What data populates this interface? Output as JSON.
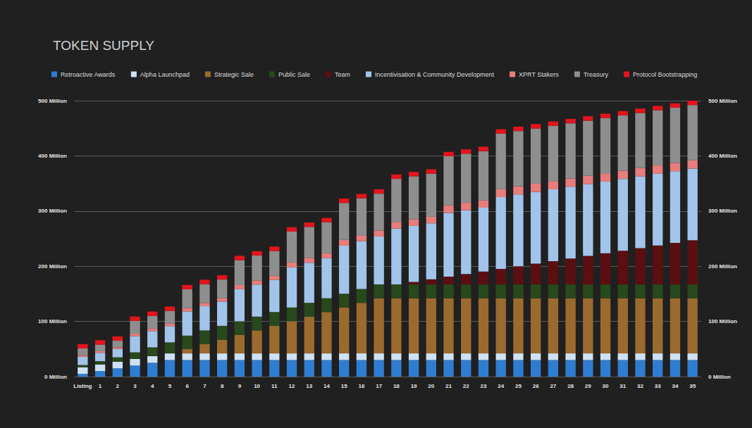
{
  "chart_data": {
    "type": "bar",
    "title": "TOKEN SUPPLY",
    "stacked": true,
    "grid": true,
    "legend": "top-left",
    "categories": [
      "Listing",
      "1",
      "2",
      "3",
      "4",
      "5",
      "6",
      "7",
      "8",
      "9",
      "10",
      "11",
      "12",
      "13",
      "14",
      "15",
      "16",
      "17",
      "18",
      "19",
      "20",
      "21",
      "22",
      "23",
      "24",
      "25",
      "26",
      "27",
      "28",
      "29",
      "30",
      "31",
      "32",
      "33",
      "34",
      "35"
    ],
    "ylim": [
      0,
      500
    ],
    "yticks": [
      {
        "value": 0,
        "label": "0 Million"
      },
      {
        "value": 100,
        "label": "100 Million"
      },
      {
        "value": 200,
        "label": "200 Million"
      },
      {
        "value": 300,
        "label": "300 Million"
      },
      {
        "value": 400,
        "label": "400 Million"
      },
      {
        "value": 500,
        "label": "500 Million"
      }
    ],
    "y2lim": [
      0,
      500
    ],
    "y2ticks": [
      {
        "value": 0,
        "label": "0 Million"
      },
      {
        "value": 100,
        "label": "100 Million"
      },
      {
        "value": 200,
        "label": "200 Million"
      },
      {
        "value": 300,
        "label": "300 Million"
      },
      {
        "value": 400,
        "label": "400 Million"
      },
      {
        "value": 500,
        "label": "500 Million"
      }
    ],
    "series": [
      {
        "name": "Retroactive Awards",
        "color": "#2f7dd1",
        "values": [
          5,
          10,
          15,
          20,
          25,
          30,
          30,
          30,
          30,
          30,
          30,
          30,
          30,
          30,
          30,
          30,
          30,
          30,
          30,
          30,
          30,
          30,
          30,
          30,
          30,
          30,
          30,
          30,
          30,
          30,
          30,
          30,
          30,
          30,
          30,
          30
        ]
      },
      {
        "name": "Alpha Launchpad",
        "color": "#cfe2f5",
        "values": [
          12,
          12,
          12,
          12,
          12,
          12,
          12,
          12,
          12,
          12,
          12,
          12,
          12,
          12,
          12,
          12,
          12,
          12,
          12,
          12,
          12,
          12,
          12,
          12,
          12,
          12,
          12,
          12,
          12,
          12,
          12,
          12,
          12,
          12,
          12,
          12
        ]
      },
      {
        "name": "Strategic Sale",
        "color": "#9b6a2f",
        "values": [
          0,
          0,
          0,
          0,
          0,
          0,
          8.3,
          16.7,
          25,
          33.3,
          41.7,
          50,
          58.3,
          66.7,
          75,
          83.3,
          91.7,
          100,
          100,
          100,
          100,
          100,
          100,
          100,
          100,
          100,
          100,
          100,
          100,
          100,
          100,
          100,
          100,
          100,
          100,
          100
        ]
      },
      {
        "name": "Public Sale",
        "color": "#27491b",
        "values": [
          4,
          6,
          8,
          12,
          16,
          20,
          24,
          25,
          25,
          25,
          25,
          25,
          25,
          25,
          25,
          25,
          25,
          25,
          25,
          25,
          25,
          25,
          25,
          25,
          25,
          25,
          25,
          25,
          25,
          25,
          25,
          25,
          25,
          25,
          25,
          25
        ]
      },
      {
        "name": "Team",
        "color": "#5c0f10",
        "values": [
          0,
          0,
          0,
          0,
          0,
          0,
          0,
          0,
          0,
          0,
          0,
          0,
          0,
          0,
          0,
          0,
          0,
          0,
          0,
          4.7,
          9.4,
          14.1,
          18.8,
          23.5,
          28.2,
          32.9,
          37.6,
          42.3,
          47,
          51.7,
          56.4,
          61.1,
          65.8,
          70.5,
          75.2,
          80
        ]
      },
      {
        "name": "Incentivisation & Community Development",
        "color": "#a2c4ea",
        "values": [
          15,
          15,
          15,
          29.4,
          29.4,
          29.4,
          43.8,
          43.8,
          43.8,
          58.1,
          58.1,
          58.1,
          72.5,
          72.5,
          72.5,
          86.9,
          86.9,
          86.9,
          101.3,
          101.3,
          101.3,
          115.6,
          115.6,
          115.6,
          130,
          130,
          130,
          130,
          130,
          130,
          130,
          130,
          130,
          130,
          130,
          130
        ]
      },
      {
        "name": "XPRT Stakers",
        "color": "#e77d7d",
        "values": [
          3,
          3,
          3,
          4.5,
          4.5,
          4.5,
          6,
          6,
          6,
          7.5,
          7.5,
          7.5,
          9,
          9,
          9,
          10.5,
          10.5,
          10.5,
          12,
          12,
          12,
          13.5,
          13.5,
          13.5,
          15,
          15,
          15,
          15,
          15,
          15,
          15,
          15,
          15,
          15,
          15,
          15
        ]
      },
      {
        "name": "Treasury",
        "color": "#8e8e8e",
        "values": [
          12,
          12,
          12,
          23,
          23,
          23,
          34,
          34,
          34,
          45,
          45,
          45,
          56,
          56,
          56,
          67,
          67,
          67,
          78,
          78,
          78,
          89,
          89,
          89,
          100,
          100,
          100,
          100,
          100,
          100,
          100,
          100,
          100,
          100,
          100,
          100
        ]
      },
      {
        "name": "Protocol Bootstrapping",
        "color": "#e3141c",
        "values": [
          8,
          8,
          8,
          8,
          8,
          8,
          8,
          8,
          8,
          8,
          8,
          8,
          8,
          8,
          8,
          8,
          8,
          8,
          8,
          8,
          8,
          8,
          8,
          8,
          8,
          8,
          8,
          8,
          8,
          8,
          8,
          8,
          8,
          8,
          8,
          8
        ]
      }
    ]
  }
}
